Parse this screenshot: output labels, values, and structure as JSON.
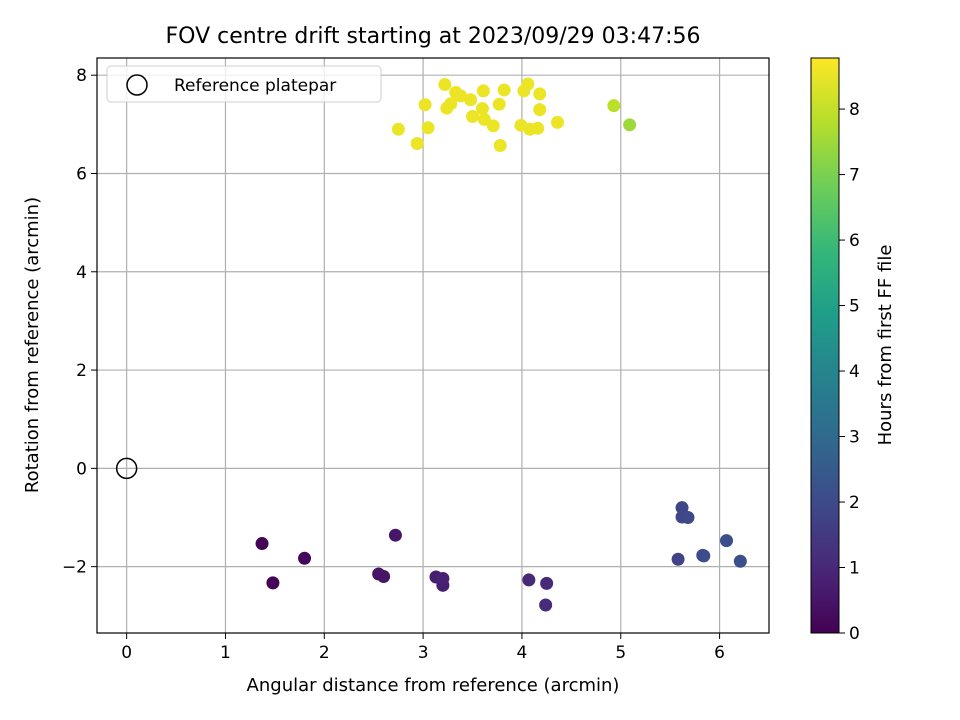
{
  "chart_data": {
    "type": "scatter",
    "title": "FOV centre drift starting at 2023/09/29 03:47:56",
    "xlabel": "Angular distance from reference (arcmin)",
    "ylabel": "Rotation from reference (arcmin)",
    "xlim": [
      -0.3,
      6.5
    ],
    "ylim": [
      -3.35,
      8.35
    ],
    "xticks": [
      0,
      1,
      2,
      3,
      4,
      5,
      6
    ],
    "xtick_labels": [
      "0",
      "1",
      "2",
      "3",
      "4",
      "5",
      "6"
    ],
    "yticks": [
      -2,
      0,
      2,
      4,
      6,
      8
    ],
    "ytick_labels": [
      "−2",
      "0",
      "2",
      "4",
      "6",
      "8"
    ],
    "grid": true,
    "legend": {
      "placement": "upper-left",
      "label": "Reference platepar"
    },
    "reference_point": {
      "x": 0,
      "y": 0
    },
    "colorbar": {
      "label": "Hours from first FF file",
      "range": [
        0,
        8.78
      ],
      "ticks": [
        0,
        1,
        2,
        3,
        4,
        5,
        6,
        7,
        8
      ],
      "tick_labels": [
        "0",
        "1",
        "2",
        "3",
        "4",
        "5",
        "6",
        "7",
        "8"
      ],
      "colormap": "viridis",
      "colormap_stops": [
        "#440154",
        "#482878",
        "#3e4989",
        "#31688e",
        "#26828e",
        "#1f9e89",
        "#35b779",
        "#6ece58",
        "#b5de2b",
        "#fde725"
      ]
    },
    "points": [
      {
        "x": 1.37,
        "y": -1.53,
        "hours": 0.05
      },
      {
        "x": 1.48,
        "y": -2.33,
        "hours": 0.1
      },
      {
        "x": 1.8,
        "y": -1.83,
        "hours": 0.15
      },
      {
        "x": 2.55,
        "y": -2.15,
        "hours": 0.45
      },
      {
        "x": 2.6,
        "y": -2.2,
        "hours": 0.5
      },
      {
        "x": 2.72,
        "y": -1.36,
        "hours": 0.55
      },
      {
        "x": 3.13,
        "y": -2.21,
        "hours": 0.7
      },
      {
        "x": 3.2,
        "y": -2.38,
        "hours": 0.75
      },
      {
        "x": 3.2,
        "y": -2.24,
        "hours": 0.8
      },
      {
        "x": 4.07,
        "y": -2.27,
        "hours": 1.0
      },
      {
        "x": 4.25,
        "y": -2.34,
        "hours": 1.05
      },
      {
        "x": 4.24,
        "y": -2.78,
        "hours": 1.1
      },
      {
        "x": 5.58,
        "y": -1.85,
        "hours": 1.8
      },
      {
        "x": 5.62,
        "y": -0.8,
        "hours": 1.85
      },
      {
        "x": 5.62,
        "y": -0.99,
        "hours": 1.9
      },
      {
        "x": 5.68,
        "y": -1.0,
        "hours": 1.95
      },
      {
        "x": 5.83,
        "y": -1.77,
        "hours": 2.0
      },
      {
        "x": 5.84,
        "y": -1.78,
        "hours": 2.05
      },
      {
        "x": 6.07,
        "y": -1.47,
        "hours": 2.1
      },
      {
        "x": 6.21,
        "y": -1.89,
        "hours": 2.15
      },
      {
        "x": 4.93,
        "y": 7.38,
        "hours": 7.9
      },
      {
        "x": 5.09,
        "y": 6.99,
        "hours": 7.5
      },
      {
        "x": 2.75,
        "y": 6.9,
        "hours": 8.55
      },
      {
        "x": 2.94,
        "y": 6.61,
        "hours": 8.55
      },
      {
        "x": 3.02,
        "y": 7.4,
        "hours": 8.55
      },
      {
        "x": 3.05,
        "y": 6.93,
        "hours": 8.55
      },
      {
        "x": 3.22,
        "y": 7.81,
        "hours": 8.55
      },
      {
        "x": 3.24,
        "y": 7.33,
        "hours": 8.55
      },
      {
        "x": 3.28,
        "y": 7.42,
        "hours": 8.55
      },
      {
        "x": 3.33,
        "y": 7.65,
        "hours": 8.55
      },
      {
        "x": 3.38,
        "y": 7.58,
        "hours": 8.55
      },
      {
        "x": 3.48,
        "y": 7.5,
        "hours": 8.55
      },
      {
        "x": 3.5,
        "y": 7.16,
        "hours": 8.55
      },
      {
        "x": 3.6,
        "y": 7.32,
        "hours": 8.55
      },
      {
        "x": 3.61,
        "y": 7.68,
        "hours": 8.55
      },
      {
        "x": 3.62,
        "y": 7.1,
        "hours": 8.55
      },
      {
        "x": 3.71,
        "y": 6.97,
        "hours": 8.55
      },
      {
        "x": 3.77,
        "y": 7.41,
        "hours": 8.55
      },
      {
        "x": 3.78,
        "y": 6.57,
        "hours": 8.55
      },
      {
        "x": 3.82,
        "y": 7.7,
        "hours": 8.55
      },
      {
        "x": 3.99,
        "y": 6.98,
        "hours": 8.55
      },
      {
        "x": 4.02,
        "y": 7.68,
        "hours": 8.55
      },
      {
        "x": 4.06,
        "y": 7.82,
        "hours": 8.55
      },
      {
        "x": 4.08,
        "y": 6.9,
        "hours": 8.55
      },
      {
        "x": 4.16,
        "y": 6.92,
        "hours": 8.55
      },
      {
        "x": 4.18,
        "y": 7.62,
        "hours": 8.55
      },
      {
        "x": 4.18,
        "y": 7.3,
        "hours": 8.55
      },
      {
        "x": 4.36,
        "y": 7.04,
        "hours": 8.55
      }
    ]
  }
}
